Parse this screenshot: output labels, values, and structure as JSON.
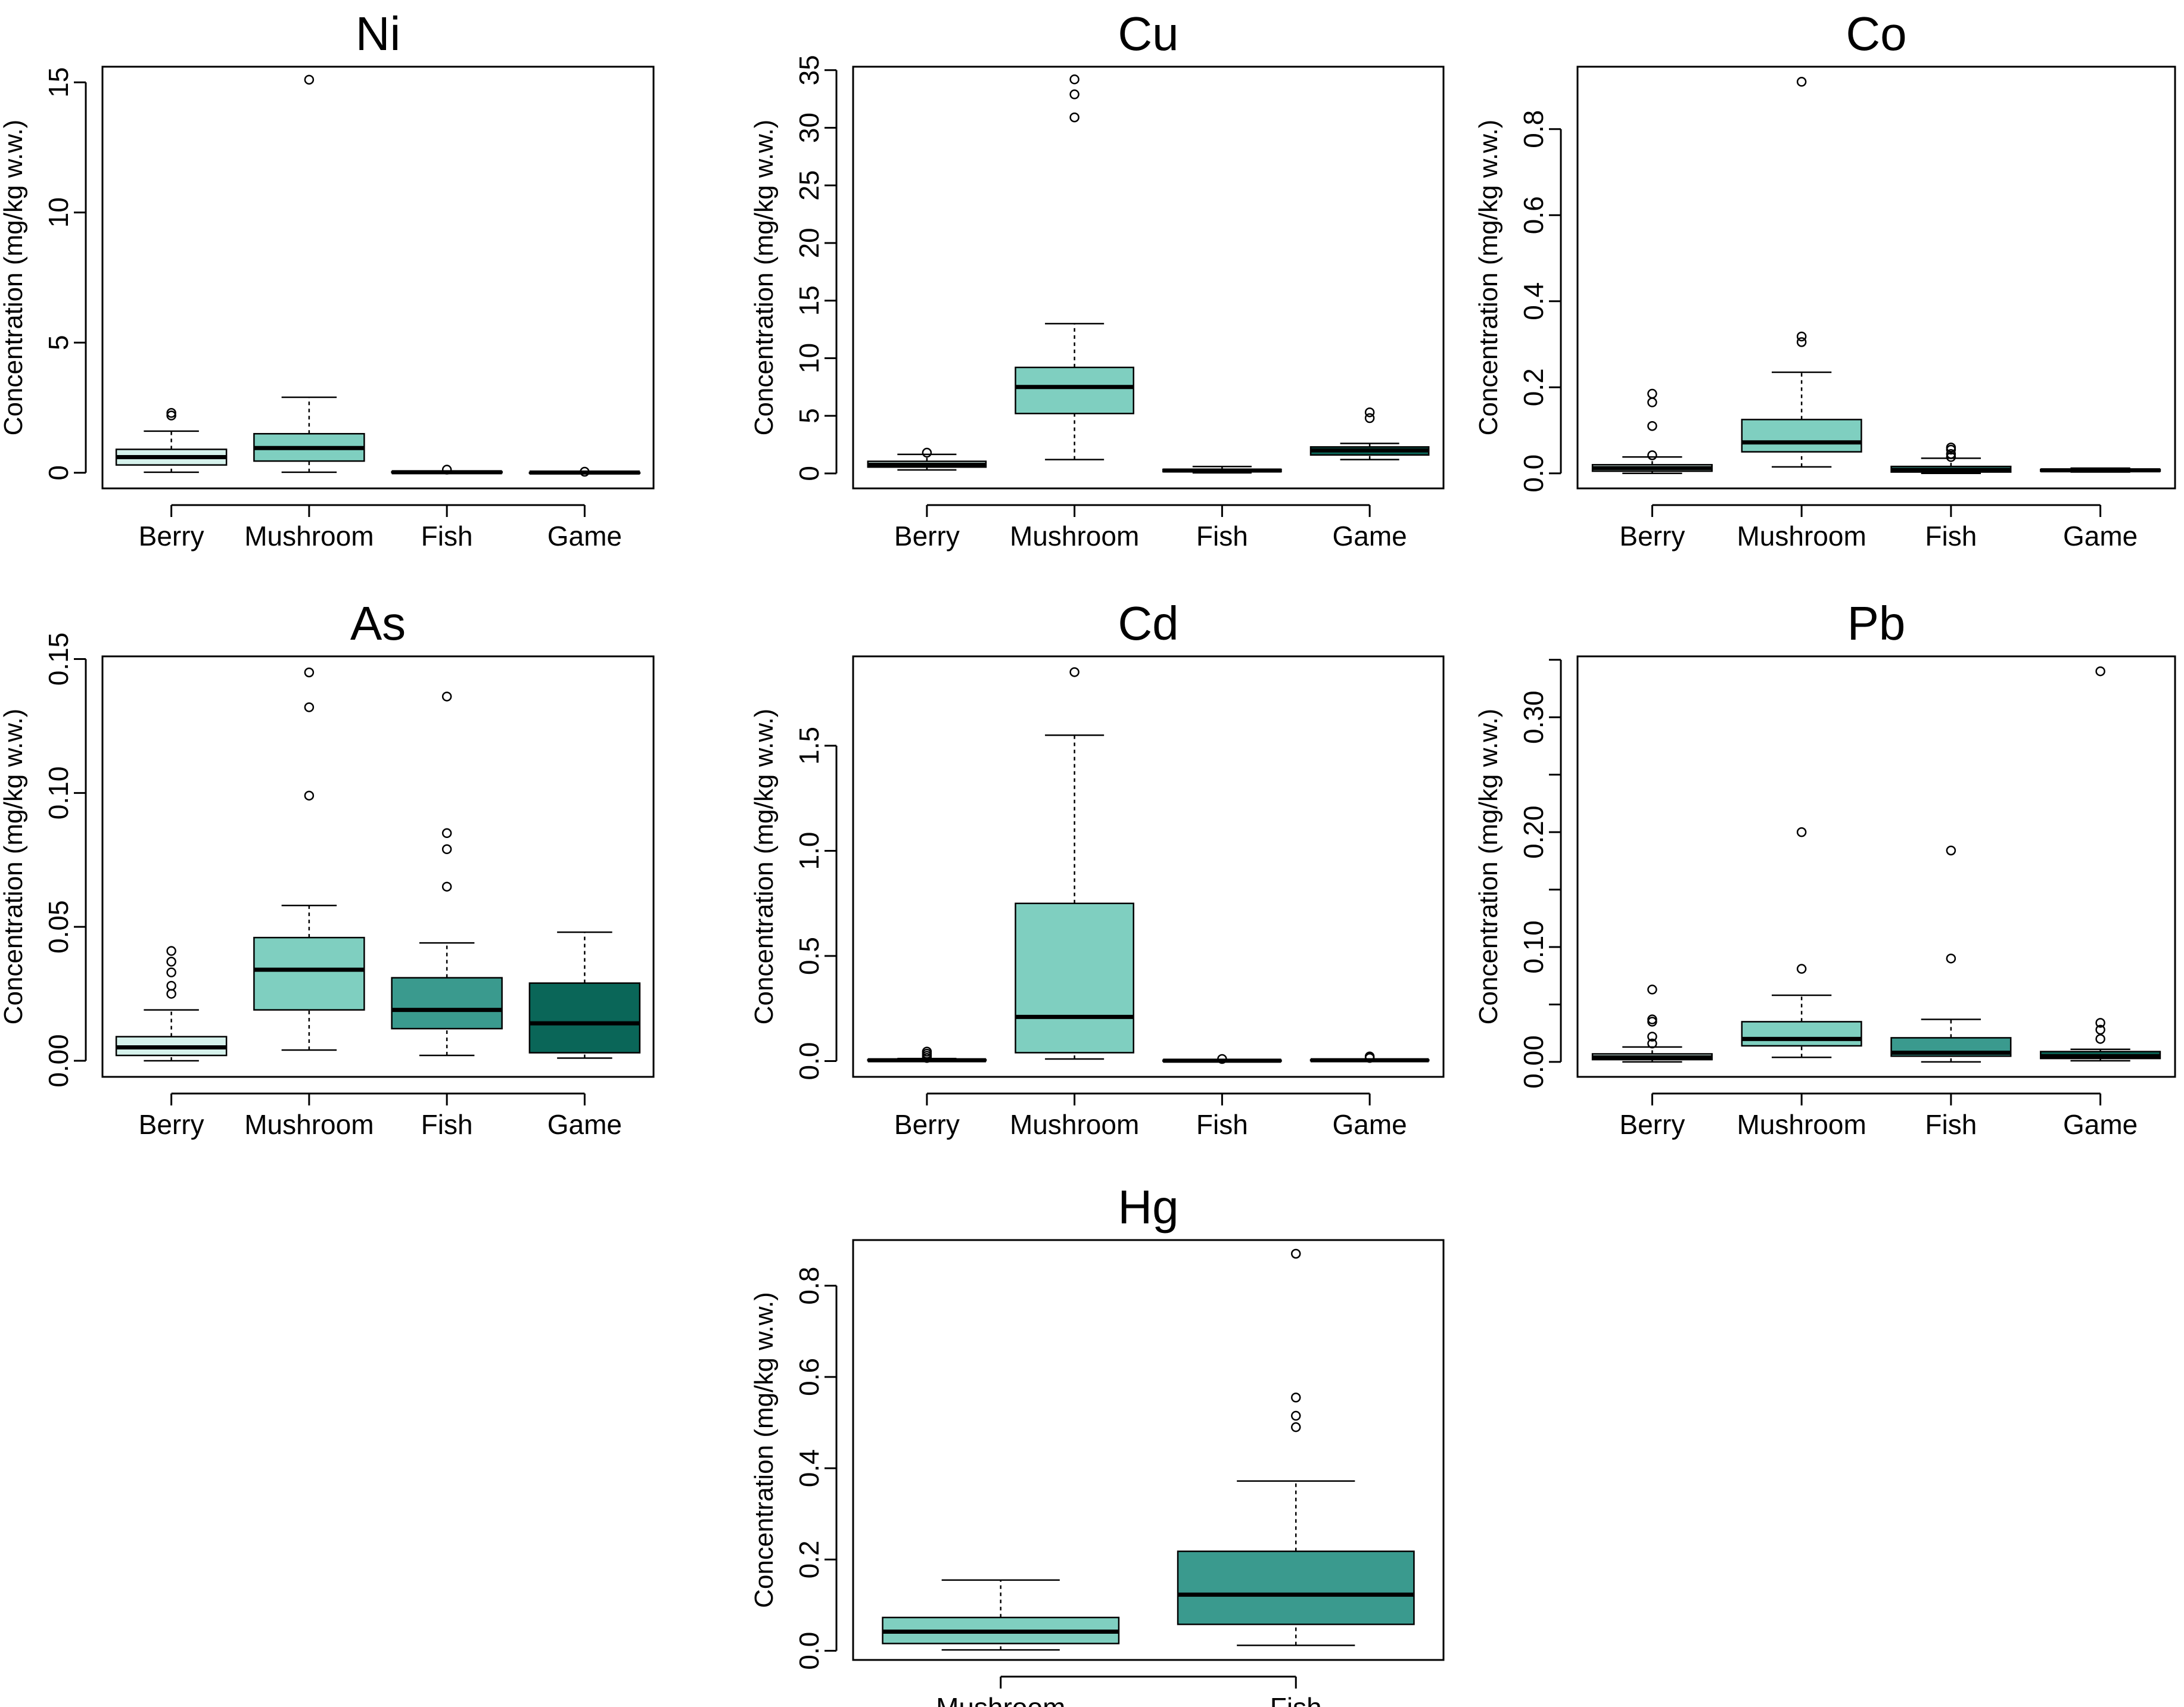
{
  "figure": {
    "colors": {
      "Berry": "#d6f2ec",
      "Mushroom": "#7fcfc0",
      "Fish": "#3a9a8e",
      "Game": "#0a6658"
    }
  },
  "chart_data": [
    {
      "type": "boxplot",
      "title": "Ni",
      "ylabel": "Concentration (mg/kg w.w.)",
      "ylim": [
        -0.6,
        15.6
      ],
      "yticks": [
        0,
        5,
        10,
        15
      ],
      "ytick_labels": [
        "0",
        "5",
        "10",
        "15"
      ],
      "categories": [
        "Berry",
        "Mushroom",
        "Fish",
        "Game"
      ],
      "boxes": [
        {
          "name": "Berry",
          "color": "#d6f2ec",
          "whislo": 0.02,
          "q1": 0.3,
          "med": 0.6,
          "q3": 0.9,
          "whishi": 1.6,
          "fliers": [
            2.2,
            2.3
          ]
        },
        {
          "name": "Mushroom",
          "color": "#7fcfc0",
          "whislo": 0.02,
          "q1": 0.45,
          "med": 0.95,
          "q3": 1.5,
          "whishi": 2.9,
          "fliers": [
            15.1
          ]
        },
        {
          "name": "Fish",
          "color": "#3a9a8e",
          "whislo": 0.0,
          "q1": 0.01,
          "med": 0.02,
          "q3": 0.04,
          "whishi": 0.07,
          "fliers": [
            0.12
          ]
        },
        {
          "name": "Game",
          "color": "#0a6658",
          "whislo": 0.0,
          "q1": 0.005,
          "med": 0.01,
          "q3": 0.015,
          "whishi": 0.02,
          "fliers": [
            0.04
          ]
        }
      ]
    },
    {
      "type": "boxplot",
      "title": "Cu",
      "ylabel": "Concentration (mg/kg w.w.)",
      "ylim": [
        -1.3,
        35.3
      ],
      "yticks": [
        0,
        5,
        10,
        15,
        20,
        25,
        30,
        35
      ],
      "ytick_labels": [
        "0",
        "5",
        "10",
        "15",
        "20",
        "25",
        "30",
        "35"
      ],
      "categories": [
        "Berry",
        "Mushroom",
        "Fish",
        "Game"
      ],
      "boxes": [
        {
          "name": "Berry",
          "color": "#d6f2ec",
          "whislo": 0.3,
          "q1": 0.55,
          "med": 0.75,
          "q3": 1.05,
          "whishi": 1.65,
          "fliers": [
            1.8
          ]
        },
        {
          "name": "Mushroom",
          "color": "#7fcfc0",
          "whislo": 1.2,
          "q1": 5.2,
          "med": 7.5,
          "q3": 9.2,
          "whishi": 13.0,
          "fliers": [
            30.9,
            32.9,
            34.2
          ]
        },
        {
          "name": "Fish",
          "color": "#3a9a8e",
          "whislo": 0.05,
          "q1": 0.15,
          "med": 0.25,
          "q3": 0.35,
          "whishi": 0.6,
          "fliers": []
        },
        {
          "name": "Game",
          "color": "#0a6658",
          "whislo": 1.2,
          "q1": 1.6,
          "med": 2.0,
          "q3": 2.3,
          "whishi": 2.6,
          "fliers": [
            4.8,
            5.3
          ]
        }
      ]
    },
    {
      "type": "boxplot",
      "title": "Co",
      "ylabel": "Concentration (mg/kg w.w.)",
      "ylim": [
        -0.035,
        0.945
      ],
      "yticks": [
        0.0,
        0.2,
        0.4,
        0.6,
        0.8
      ],
      "ytick_labels": [
        "0.0",
        "0.2",
        "0.4",
        "0.6",
        "0.8"
      ],
      "categories": [
        "Berry",
        "Mushroom",
        "Fish",
        "Game"
      ],
      "boxes": [
        {
          "name": "Berry",
          "color": "#d6f2ec",
          "whislo": 0.0,
          "q1": 0.005,
          "med": 0.012,
          "q3": 0.02,
          "whishi": 0.038,
          "fliers": [
            0.042,
            0.11,
            0.165,
            0.185
          ]
        },
        {
          "name": "Mushroom",
          "color": "#7fcfc0",
          "whislo": 0.015,
          "q1": 0.05,
          "med": 0.072,
          "q3": 0.125,
          "whishi": 0.235,
          "fliers": [
            0.305,
            0.318,
            0.91
          ]
        },
        {
          "name": "Fish",
          "color": "#3a9a8e",
          "whislo": 0.0,
          "q1": 0.003,
          "med": 0.008,
          "q3": 0.016,
          "whishi": 0.035,
          "fliers": [
            0.038,
            0.045,
            0.055,
            0.06
          ]
        },
        {
          "name": "Game",
          "color": "#0a6658",
          "whislo": 0.003,
          "q1": 0.005,
          "med": 0.007,
          "q3": 0.009,
          "whishi": 0.012,
          "fliers": []
        }
      ]
    },
    {
      "type": "boxplot",
      "title": "As",
      "ylabel": "Concentration (mg/kg w.w.)",
      "ylim": [
        -0.006,
        0.151
      ],
      "yticks": [
        0.0,
        0.05,
        0.1,
        0.15
      ],
      "ytick_labels": [
        "0.00",
        "0.05",
        "0.10",
        "0.15"
      ],
      "categories": [
        "Berry",
        "Mushroom",
        "Fish",
        "Game"
      ],
      "boxes": [
        {
          "name": "Berry",
          "color": "#d6f2ec",
          "whislo": 0.0,
          "q1": 0.002,
          "med": 0.005,
          "q3": 0.009,
          "whishi": 0.019,
          "fliers": [
            0.025,
            0.028,
            0.033,
            0.037,
            0.041
          ]
        },
        {
          "name": "Mushroom",
          "color": "#7fcfc0",
          "whislo": 0.004,
          "q1": 0.019,
          "med": 0.034,
          "q3": 0.046,
          "whishi": 0.058,
          "fliers": [
            0.099,
            0.132,
            0.145
          ]
        },
        {
          "name": "Fish",
          "color": "#3a9a8e",
          "whislo": 0.002,
          "q1": 0.012,
          "med": 0.019,
          "q3": 0.031,
          "whishi": 0.044,
          "fliers": [
            0.065,
            0.079,
            0.085,
            0.136
          ]
        },
        {
          "name": "Game",
          "color": "#0a6658",
          "whislo": 0.001,
          "q1": 0.003,
          "med": 0.014,
          "q3": 0.029,
          "whishi": 0.048,
          "fliers": []
        }
      ]
    },
    {
      "type": "boxplot",
      "title": "Cd",
      "ylabel": "Concentration (mg/kg w.w.)",
      "ylim": [
        -0.075,
        1.925
      ],
      "yticks": [
        0.0,
        0.5,
        1.0,
        1.5
      ],
      "ytick_labels": [
        "0.0",
        "0.5",
        "1.0",
        "1.5"
      ],
      "categories": [
        "Berry",
        "Mushroom",
        "Fish",
        "Game"
      ],
      "boxes": [
        {
          "name": "Berry",
          "color": "#d6f2ec",
          "whislo": 0.0,
          "q1": 0.002,
          "med": 0.004,
          "q3": 0.007,
          "whishi": 0.012,
          "fliers": [
            0.015,
            0.025,
            0.035,
            0.045
          ]
        },
        {
          "name": "Mushroom",
          "color": "#7fcfc0",
          "whislo": 0.01,
          "q1": 0.04,
          "med": 0.21,
          "q3": 0.75,
          "whishi": 1.55,
          "fliers": [
            1.85
          ]
        },
        {
          "name": "Fish",
          "color": "#3a9a8e",
          "whislo": 0.0,
          "q1": 0.001,
          "med": 0.002,
          "q3": 0.004,
          "whishi": 0.006,
          "fliers": [
            0.01
          ]
        },
        {
          "name": "Game",
          "color": "#0a6658",
          "whislo": 0.0,
          "q1": 0.002,
          "med": 0.004,
          "q3": 0.006,
          "whishi": 0.009,
          "fliers": [
            0.015,
            0.022
          ]
        }
      ]
    },
    {
      "type": "boxplot",
      "title": "Pb",
      "ylabel": "Concentration (mg/kg w.w.)",
      "ylim": [
        -0.013,
        0.353
      ],
      "yticks": [
        0.0,
        0.1,
        0.2,
        0.3
      ],
      "yticks_minor": [
        0.05,
        0.15,
        0.25,
        0.35
      ],
      "ytick_labels": [
        "0.00",
        "0.10",
        "0.20",
        "0.30"
      ],
      "categories": [
        "Berry",
        "Mushroom",
        "Fish",
        "Game"
      ],
      "boxes": [
        {
          "name": "Berry",
          "color": "#d6f2ec",
          "whislo": 0.0,
          "q1": 0.002,
          "med": 0.004,
          "q3": 0.007,
          "whishi": 0.013,
          "fliers": [
            0.016,
            0.022,
            0.035,
            0.037,
            0.063
          ]
        },
        {
          "name": "Mushroom",
          "color": "#7fcfc0",
          "whislo": 0.004,
          "q1": 0.014,
          "med": 0.02,
          "q3": 0.035,
          "whishi": 0.058,
          "fliers": [
            0.081,
            0.2
          ]
        },
        {
          "name": "Fish",
          "color": "#3a9a8e",
          "whislo": 0.0,
          "q1": 0.005,
          "med": 0.008,
          "q3": 0.021,
          "whishi": 0.037,
          "fliers": [
            0.09,
            0.184
          ]
        },
        {
          "name": "Game",
          "color": "#0a6658",
          "whislo": 0.001,
          "q1": 0.003,
          "med": 0.005,
          "q3": 0.009,
          "whishi": 0.011,
          "fliers": [
            0.02,
            0.028,
            0.034,
            0.34
          ]
        }
      ]
    },
    {
      "type": "boxplot",
      "title": "Hg",
      "ylabel": "Concentration (mg/kg w.w.)",
      "ylim": [
        -0.02,
        0.9
      ],
      "yticks": [
        0.0,
        0.2,
        0.4,
        0.6,
        0.8
      ],
      "ytick_labels": [
        "0.0",
        "0.2",
        "0.4",
        "0.6",
        "0.8"
      ],
      "categories": [
        "Mushroom",
        "Fish"
      ],
      "boxes": [
        {
          "name": "Mushroom",
          "color": "#7fcfc0",
          "whislo": 0.002,
          "q1": 0.016,
          "med": 0.042,
          "q3": 0.073,
          "whishi": 0.155,
          "fliers": []
        },
        {
          "name": "Fish",
          "color": "#3a9a8e",
          "whislo": 0.012,
          "q1": 0.058,
          "med": 0.123,
          "q3": 0.218,
          "whishi": 0.372,
          "fliers": [
            0.49,
            0.515,
            0.555,
            0.87
          ]
        }
      ]
    }
  ]
}
